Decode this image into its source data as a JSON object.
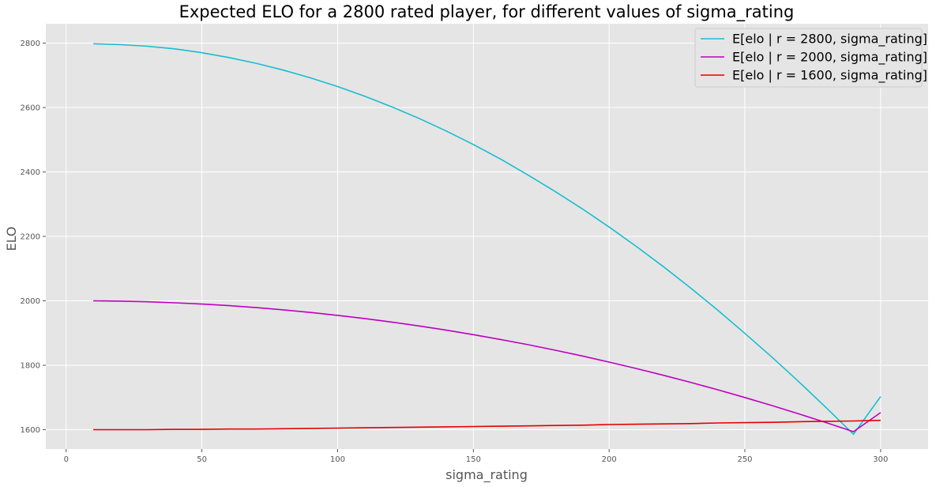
{
  "chart_data": {
    "type": "line",
    "title": "Expected ELO for a 2800 rated player, for different values of sigma_rating",
    "xlabel": "sigma_rating",
    "ylabel": "ELO",
    "xlim": [
      -7.5,
      317.5
    ],
    "ylim": [
      1540,
      2860
    ],
    "xticks": [
      0,
      50,
      100,
      150,
      200,
      250,
      300
    ],
    "yticks": [
      1600,
      1800,
      2000,
      2200,
      2400,
      2600,
      2800
    ],
    "grid": true,
    "legend_position": "top-right",
    "background": "#e5e5e5",
    "x": [
      10,
      20,
      30,
      40,
      50,
      60,
      70,
      80,
      90,
      100,
      110,
      120,
      130,
      140,
      150,
      160,
      170,
      180,
      190,
      200,
      210,
      220,
      230,
      240,
      250,
      260,
      270,
      280,
      290,
      300
    ],
    "series": [
      {
        "name": "E[elo | r = 2800, sigma_rating]",
        "color": "#17becf",
        "values": [
          2798,
          2795,
          2790,
          2782,
          2770,
          2755,
          2737,
          2716,
          2692,
          2665,
          2635,
          2602,
          2566,
          2527,
          2485,
          2440,
          2391,
          2340,
          2286,
          2229,
          2169,
          2106,
          2040,
          1971,
          1899,
          1825,
          1748,
          1668,
          1586,
          1703
        ]
      },
      {
        "name": "E[elo | r = 2000, sigma_rating]",
        "color": "#bf00bf",
        "values": [
          2000,
          1999,
          1997,
          1994,
          1990,
          1985,
          1979,
          1972,
          1964,
          1955,
          1945,
          1934,
          1922,
          1909,
          1895,
          1880,
          1864,
          1847,
          1829,
          1810,
          1790,
          1769,
          1747,
          1724,
          1700,
          1675,
          1649,
          1622,
          1594,
          1653
        ]
      },
      {
        "name": "E[elo | r = 1600, sigma_rating]",
        "color": "#e50000",
        "values": [
          1600,
          1600,
          1600,
          1601,
          1601,
          1602,
          1602,
          1603,
          1604,
          1605,
          1606,
          1607,
          1608,
          1609,
          1610,
          1611,
          1612,
          1613,
          1614,
          1616,
          1617,
          1618,
          1619,
          1621,
          1622,
          1623,
          1625,
          1626,
          1627,
          1629
        ]
      }
    ]
  }
}
